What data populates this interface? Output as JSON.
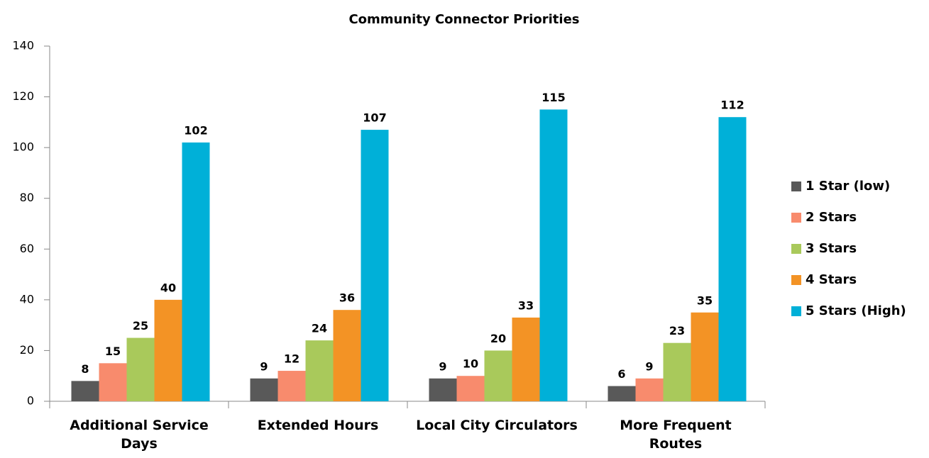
{
  "chart_data": {
    "type": "bar",
    "title": "Community Connector Priorities",
    "categories": [
      "Additional Service Days",
      "Extended Hours",
      "Local City Circulators",
      "More Frequent Routes"
    ],
    "series": [
      {
        "name": "1 Star (low)",
        "color": "#595959",
        "values": [
          8,
          9,
          9,
          6
        ]
      },
      {
        "name": "2 Stars",
        "color": "#f88b6d",
        "values": [
          15,
          12,
          10,
          9
        ]
      },
      {
        "name": "3 Stars",
        "color": "#a9c95b",
        "values": [
          25,
          24,
          20,
          23
        ]
      },
      {
        "name": "4 Stars",
        "color": "#f39325",
        "values": [
          40,
          36,
          33,
          35
        ]
      },
      {
        "name": "5 Stars (High)",
        "color": "#00b0d8",
        "values": [
          102,
          107,
          115,
          112
        ]
      }
    ],
    "ylim": [
      0,
      140
    ],
    "yticks": [
      0,
      20,
      40,
      60,
      80,
      100,
      120,
      140
    ],
    "legend": "right",
    "data_labels": true
  }
}
